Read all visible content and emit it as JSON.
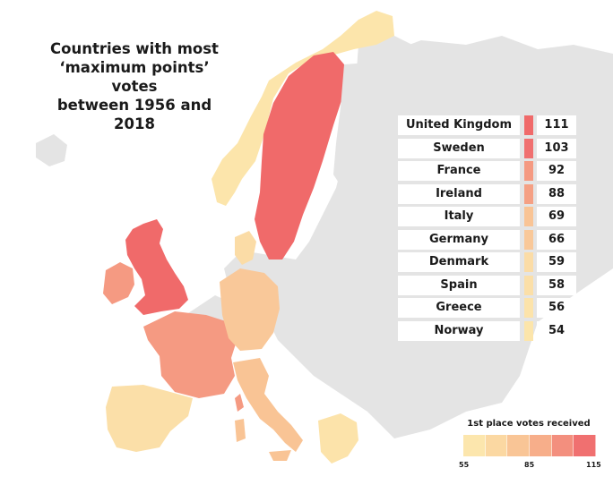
{
  "title_lines": [
    "Countries with most",
    "‘maximum points’ votes",
    "between 1956 and 2018"
  ],
  "ranking": [
    {
      "country": "United Kingdom",
      "votes": "111",
      "color": "#f06a6a"
    },
    {
      "country": "Sweden",
      "votes": "103",
      "color": "#f07070"
    },
    {
      "country": "France",
      "votes": "92",
      "color": "#f59a82"
    },
    {
      "country": "Ireland",
      "votes": "88",
      "color": "#f5a084"
    },
    {
      "country": "Italy",
      "votes": "69",
      "color": "#f9c495"
    },
    {
      "country": "Germany",
      "votes": "66",
      "color": "#f9c899"
    },
    {
      "country": "Denmark",
      "votes": "59",
      "color": "#fbdca6"
    },
    {
      "country": "Spain",
      "votes": "58",
      "color": "#fbdfa8"
    },
    {
      "country": "Greece",
      "votes": "56",
      "color": "#fce3aa"
    },
    {
      "country": "Norway",
      "votes": "54",
      "color": "#fce5ab"
    }
  ],
  "legend": {
    "title": "1st place votes received",
    "min": "55",
    "mid": "85",
    "max": "115",
    "colors": [
      "#fce6ad",
      "#fbd8a2",
      "#f9c596",
      "#f7ae8a",
      "#f38f7e",
      "#f07070"
    ]
  },
  "colors": {
    "background": "#ffffff",
    "land": "#e3e3e3"
  }
}
